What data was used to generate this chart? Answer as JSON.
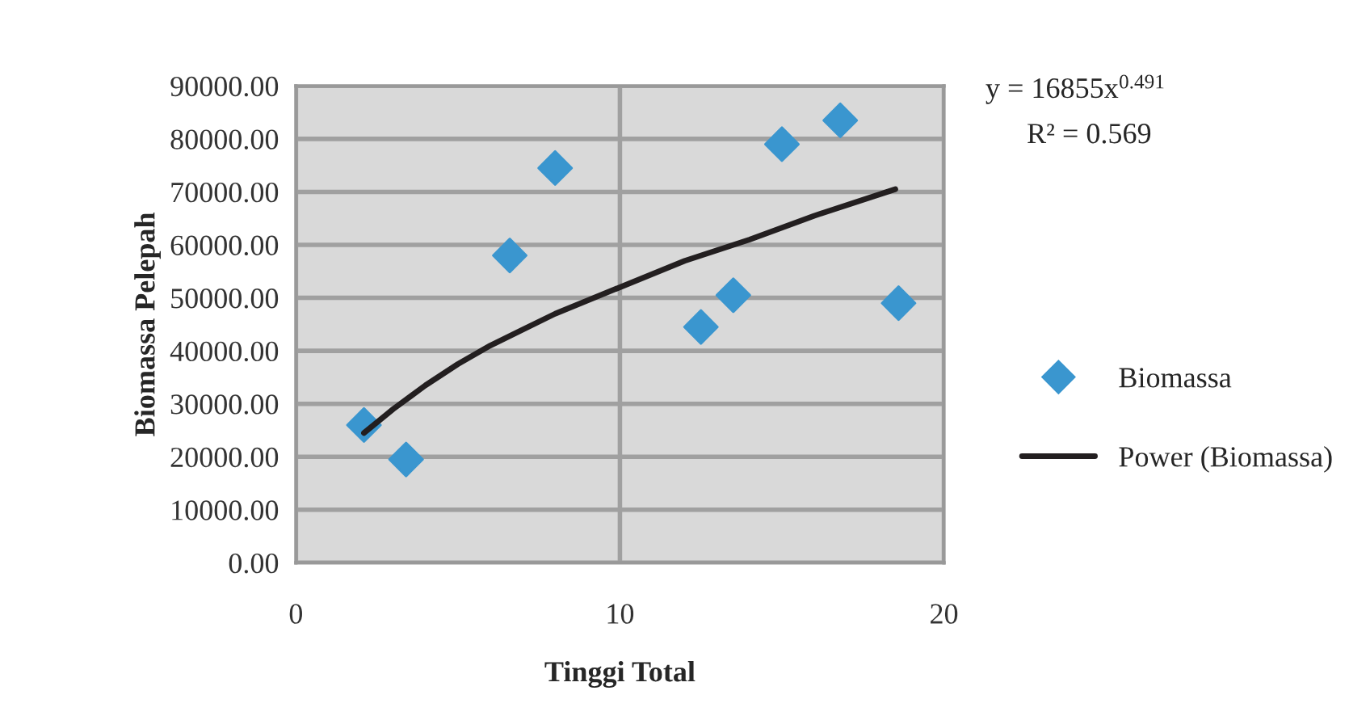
{
  "chart_data": {
    "type": "scatter",
    "xlabel": "Tinggi Total",
    "ylabel": "Biomassa Pelepah",
    "xlim": [
      0,
      20
    ],
    "xticks": [
      0,
      10,
      20
    ],
    "ylim": [
      0,
      90000
    ],
    "yticks": [
      {
        "value": 0,
        "label": "0.00"
      },
      {
        "value": 10000,
        "label": "10000.00"
      },
      {
        "value": 20000,
        "label": "20000.00"
      },
      {
        "value": 30000,
        "label": "30000.00"
      },
      {
        "value": 40000,
        "label": "40000.00"
      },
      {
        "value": 50000,
        "label": "50000.00"
      },
      {
        "value": 60000,
        "label": "60000.00"
      },
      {
        "value": 70000,
        "label": "70000.00"
      },
      {
        "value": 80000,
        "label": "80000.00"
      },
      {
        "value": 90000,
        "label": "90000.00"
      }
    ],
    "grid": true,
    "legend": "right",
    "series": [
      {
        "name": "Biomassa",
        "marker": "diamond",
        "color": "#3a96cf",
        "x": [
          2.1,
          3.4,
          6.6,
          8.0,
          12.5,
          13.5,
          15.0,
          16.8,
          18.6
        ],
        "values": [
          26000,
          19500,
          58000,
          74500,
          44500,
          50500,
          79000,
          83500,
          49000
        ]
      },
      {
        "name": "Power (Biomassa)",
        "type": "line",
        "marker": "none",
        "color": "#231f20",
        "x": [
          2.1,
          3,
          4,
          5,
          6,
          7,
          8,
          10,
          12,
          14,
          16,
          18.5
        ],
        "values": [
          24500,
          29000,
          33500,
          37500,
          41000,
          44000,
          47000,
          52000,
          57000,
          61000,
          65500,
          70500
        ]
      }
    ],
    "annotations": [
      "y = 16855x$^{0.491}$",
      "R² = 0.569"
    ]
  }
}
